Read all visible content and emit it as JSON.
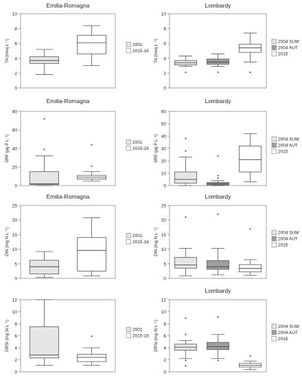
{
  "chart_data": [
    {
      "type": "box",
      "title": "Emilia-Romagna",
      "ylabel": "TA (meq L⁻¹)",
      "ylim": [
        0,
        10
      ],
      "yticks": [
        0,
        2,
        4,
        6,
        8,
        10
      ],
      "series": [
        {
          "name": "2001",
          "fill": "#e6e6e6",
          "min": 1.8,
          "q1": 3.3,
          "median": 3.7,
          "q3": 4.2,
          "max": 5.2,
          "outliers": []
        },
        {
          "name": "2015-16",
          "fill": "#ffffff",
          "min": 3.0,
          "q1": 4.6,
          "median": 6.1,
          "q3": 7.1,
          "max": 8.4,
          "outliers": []
        }
      ]
    },
    {
      "type": "box",
      "title": "Lombardy",
      "ylabel": "TA (meq L⁻¹)",
      "ylim": [
        0,
        10
      ],
      "yticks": [
        0,
        2,
        4,
        6,
        8,
        10
      ],
      "series": [
        {
          "name": "2004 SUM",
          "fill": "#e6e6e6",
          "min": 2.9,
          "q1": 3.1,
          "median": 3.4,
          "q3": 3.7,
          "max": 4.3,
          "outliers": [
            2.1
          ]
        },
        {
          "name": "2004 AUT",
          "fill": "#9e9e9e",
          "min": 2.9,
          "q1": 3.2,
          "median": 3.5,
          "q3": 3.9,
          "max": 4.6,
          "outliers": [
            2.1
          ]
        },
        {
          "name": "2015",
          "fill": "#ffffff",
          "min": 3.5,
          "q1": 4.8,
          "median": 5.4,
          "q3": 5.9,
          "max": 7.4,
          "outliers": [
            2.1
          ]
        }
      ]
    },
    {
      "type": "box",
      "title": "Emilia-Romagna",
      "ylabel": "SRP (μg P L⁻¹)",
      "ylim": [
        0,
        80
      ],
      "yticks": [
        0,
        20,
        40,
        60,
        80
      ],
      "series": [
        {
          "name": "2001",
          "fill": "#e6e6e6",
          "min": 0,
          "q1": 1,
          "median": 2,
          "q3": 15,
          "max": 32,
          "outliers": [
            39,
            72
          ]
        },
        {
          "name": "2015-16",
          "fill": "#ffffff",
          "min": 5,
          "q1": 7,
          "median": 9,
          "q3": 11,
          "max": 15,
          "outliers": [
            21,
            44
          ]
        }
      ]
    },
    {
      "type": "box",
      "title": "Lombardy",
      "ylabel": "SRP (μg P L⁻¹)",
      "ylim": [
        0,
        60
      ],
      "yticks": [
        0,
        10,
        20,
        30,
        40,
        50,
        60
      ],
      "series": [
        {
          "name": "2004 SUM",
          "fill": "#e6e6e6",
          "min": 0,
          "q1": 2,
          "median": 5,
          "q3": 11,
          "max": 23,
          "outliers": [
            28,
            38
          ]
        },
        {
          "name": "2004 AUT",
          "fill": "#9e9e9e",
          "min": 0,
          "q1": 0.5,
          "median": 1.5,
          "q3": 2.5,
          "max": 4,
          "outliers": [
            6,
            8,
            24
          ]
        },
        {
          "name": "2015",
          "fill": "#ffffff",
          "min": 3,
          "q1": 11,
          "median": 21,
          "q3": 32,
          "max": 42,
          "outliers": []
        }
      ]
    },
    {
      "type": "box",
      "title": "Emilia-Romagna",
      "ylabel": "DIN (mg N L⁻¹)",
      "ylim": [
        0,
        25
      ],
      "yticks": [
        0,
        5,
        10,
        15,
        20,
        25
      ],
      "series": [
        {
          "name": "2001",
          "fill": "#e6e6e6",
          "min": 0.3,
          "q1": 1.5,
          "median": 4,
          "q3": 6.2,
          "max": 9.2,
          "outliers": []
        },
        {
          "name": "2015-16",
          "fill": "#ffffff",
          "min": 0.8,
          "q1": 2.5,
          "median": 9.6,
          "q3": 14,
          "max": 20.8,
          "outliers": []
        }
      ]
    },
    {
      "type": "box",
      "title": "Lombardy",
      "ylabel": "DIN (mg N L⁻¹)",
      "ylim": [
        0,
        25
      ],
      "yticks": [
        0,
        5,
        10,
        15,
        20,
        25
      ],
      "series": [
        {
          "name": "2004 SUM",
          "fill": "#e6e6e6",
          "min": 0.8,
          "q1": 3.5,
          "median": 4.6,
          "q3": 7.2,
          "max": 10.3,
          "outliers": [
            21
          ]
        },
        {
          "name": "2004 AUT",
          "fill": "#9e9e9e",
          "min": 1.2,
          "q1": 3.1,
          "median": 4.0,
          "q3": 6.1,
          "max": 10.3,
          "outliers": [
            22
          ]
        },
        {
          "name": "2015",
          "fill": "#ffffff",
          "min": 1.0,
          "q1": 2.2,
          "median": 3.4,
          "q3": 4.7,
          "max": 6.4,
          "outliers": [
            17
          ]
        }
      ]
    },
    {
      "type": "box",
      "title": "",
      "ylabel": "DRSi (mg Si L⁻¹)",
      "ylim": [
        0,
        12
      ],
      "yticks": [
        0,
        2,
        4,
        6,
        8,
        10,
        12
      ],
      "series": [
        {
          "name": "2001",
          "fill": "#e6e6e6",
          "min": 1.1,
          "q1": 2.3,
          "median": 2.8,
          "q3": 7.5,
          "max": 12,
          "outliers": []
        },
        {
          "name": "2015-16",
          "fill": "#ffffff",
          "min": 1.1,
          "q1": 1.7,
          "median": 2.4,
          "q3": 2.9,
          "max": 4.0,
          "outliers": [
            5.9
          ]
        }
      ]
    },
    {
      "type": "box",
      "title": "Lombardy",
      "ylabel": "DRSi (mg Si L⁻¹)",
      "ylim": [
        0,
        12
      ],
      "yticks": [
        0,
        2,
        4,
        6,
        8,
        10,
        12
      ],
      "series": [
        {
          "name": "2004 SUM",
          "fill": "#e6e6e6",
          "min": 2.2,
          "q1": 3.6,
          "median": 4.1,
          "q3": 4.6,
          "max": 5.2,
          "outliers": [
            1.0,
            1.9,
            6.2,
            8.9
          ]
        },
        {
          "name": "2004 AUT",
          "fill": "#9e9e9e",
          "min": 2.2,
          "q1": 3.7,
          "median": 4.2,
          "q3": 4.9,
          "max": 6.2,
          "outliers": [
            1.9,
            9.1
          ]
        },
        {
          "name": "2015",
          "fill": "#ffffff",
          "min": 0.4,
          "q1": 0.8,
          "median": 1.1,
          "q3": 1.4,
          "max": 1.8,
          "outliers": [
            2.6
          ]
        }
      ]
    }
  ]
}
